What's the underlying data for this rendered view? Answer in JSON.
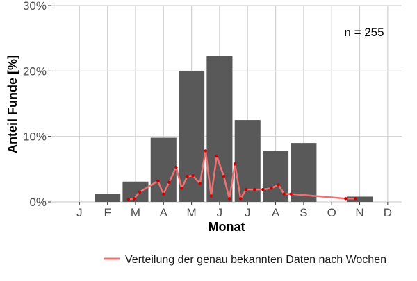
{
  "chart_data": {
    "type": "bar",
    "xlabel": "Monat",
    "ylabel": "Anteil Funde [%]",
    "annotation": "n = 255",
    "categories": [
      "J",
      "F",
      "M",
      "A",
      "M",
      "J",
      "J",
      "A",
      "S",
      "O",
      "N",
      "D"
    ],
    "ylim": [
      0,
      30
    ],
    "yticks": [
      0,
      10,
      20,
      30
    ],
    "ytick_labels": [
      "0%",
      "10%",
      "20%",
      "30%"
    ],
    "grid": true,
    "legend_position": "bottom",
    "bar_color": "#595959",
    "series": [
      {
        "type": "bar",
        "values": [
          0,
          1.2,
          3.1,
          9.8,
          20.0,
          22.3,
          12.5,
          7.8,
          9.0,
          0,
          0.8,
          0
        ]
      },
      {
        "type": "line",
        "name": "Verteilung der genau bekannten Daten nach Wochen",
        "color": "#f07070",
        "marker_color": "#cc0000",
        "x": [
          2.75,
          2.95,
          3.15,
          3.8,
          4.0,
          4.2,
          4.45,
          4.65,
          4.85,
          5.05,
          5.3,
          5.5,
          5.7,
          5.9,
          6.15,
          6.35,
          6.55,
          6.75,
          6.95,
          7.25,
          7.55,
          7.85,
          8.1,
          8.3,
          8.55,
          10.5,
          10.85
        ],
        "y": [
          0.4,
          0.5,
          1.5,
          3.2,
          1.2,
          3.0,
          5.3,
          2.1,
          3.9,
          4.0,
          2.8,
          7.8,
          0.9,
          7.0,
          3.9,
          0.5,
          5.8,
          0.5,
          1.9,
          1.9,
          1.9,
          2.1,
          2.6,
          1.2,
          1.2,
          0.5,
          0.5
        ]
      }
    ]
  }
}
